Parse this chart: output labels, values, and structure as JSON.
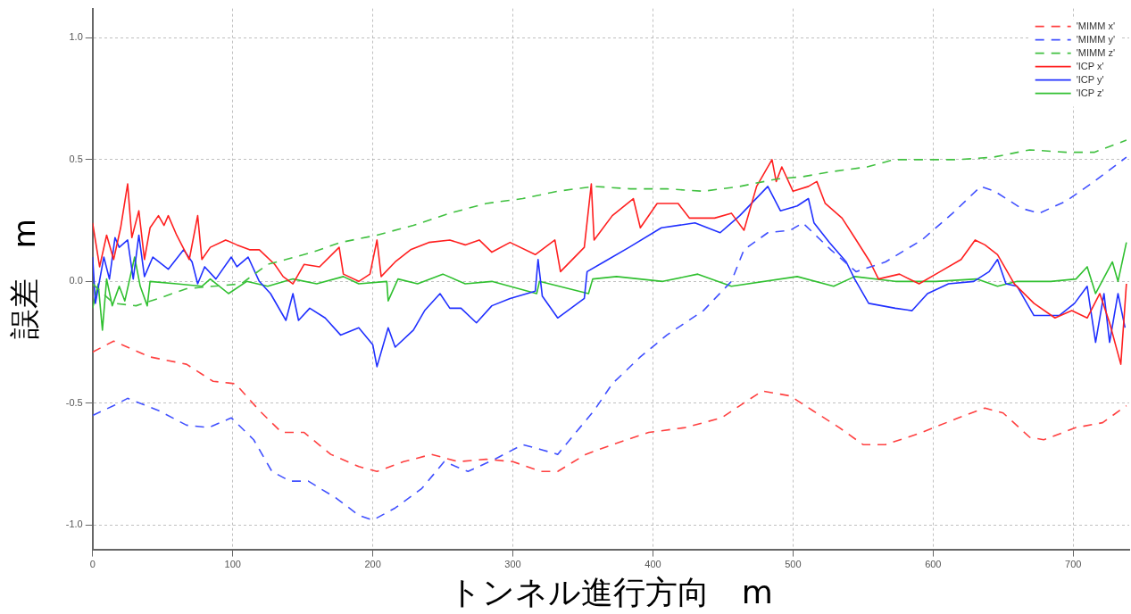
{
  "chart_data": {
    "type": "line",
    "xlabel": "トンネル進行方向　m",
    "ylabel": "誤差　m",
    "xlim": [
      0,
      740
    ],
    "xticks": [
      0,
      100,
      200,
      300,
      400,
      500,
      600,
      700
    ],
    "ylim": [
      -1.1,
      1.12
    ],
    "yticks": [
      {
        "value": -1,
        "label": "-1.0"
      },
      {
        "value": -0.5,
        "label": "-0.5"
      },
      {
        "value": 0,
        "label": "0.0"
      },
      {
        "value": 0.5,
        "label": "0.5"
      },
      {
        "value": 1,
        "label": "1.0"
      }
    ],
    "grid": true,
    "legend": "top right",
    "marker": "none",
    "series": [
      {
        "name": "'MIMM x'",
        "color": "#ff4040",
        "line_style": "dashed",
        "x": [
          0,
          15,
          41,
          67,
          86,
          102,
          119,
          135,
          151,
          170,
          190,
          203,
          222,
          242,
          261,
          281,
          300,
          320,
          332,
          352,
          371,
          397,
          423,
          449,
          462,
          478,
          498,
          514,
          533,
          550,
          566,
          592,
          618,
          637,
          650,
          669,
          679,
          702,
          721,
          738
        ],
        "values": [
          -0.29,
          -0.245,
          -0.31,
          -0.34,
          -0.41,
          -0.42,
          -0.53,
          -0.62,
          -0.62,
          -0.71,
          -0.76,
          -0.78,
          -0.74,
          -0.71,
          -0.74,
          -0.73,
          -0.74,
          -0.78,
          -0.78,
          -0.71,
          -0.67,
          -0.62,
          -0.6,
          -0.56,
          -0.51,
          -0.45,
          -0.47,
          -0.53,
          -0.6,
          -0.67,
          -0.67,
          -0.62,
          -0.56,
          -0.52,
          -0.54,
          -0.64,
          -0.65,
          -0.6,
          -0.58,
          -0.51
        ]
      },
      {
        "name": "'MIMM y'",
        "color": "#4050ff",
        "line_style": "dashed",
        "x": [
          0,
          15,
          25,
          47,
          67,
          83,
          99,
          115,
          128,
          141,
          154,
          174,
          190,
          200,
          216,
          235,
          251,
          268,
          287,
          307,
          320,
          332,
          345,
          358,
          371,
          391,
          410,
          436,
          456,
          465,
          482,
          498,
          507,
          527,
          545,
          566,
          592,
          614,
          634,
          644,
          663,
          676,
          695,
          715,
          738
        ],
        "values": [
          -0.55,
          -0.51,
          -0.48,
          -0.53,
          -0.59,
          -0.6,
          -0.56,
          -0.65,
          -0.78,
          -0.82,
          -0.82,
          -0.89,
          -0.96,
          -0.98,
          -0.93,
          -0.85,
          -0.74,
          -0.78,
          -0.73,
          -0.67,
          -0.69,
          -0.71,
          -0.62,
          -0.53,
          -0.42,
          -0.31,
          -0.22,
          -0.12,
          0.0,
          0.13,
          0.2,
          0.21,
          0.24,
          0.13,
          0.04,
          0.08,
          0.17,
          0.28,
          0.39,
          0.37,
          0.3,
          0.28,
          0.33,
          0.41,
          0.51
        ]
      },
      {
        "name": "'MIMM z'",
        "color": "#40c040",
        "line_style": "dashed",
        "x": [
          0,
          15,
          31,
          47,
          67,
          86,
          106,
          125,
          138,
          157,
          177,
          203,
          229,
          255,
          281,
          307,
          332,
          358,
          384,
          410,
          436,
          462,
          488,
          507,
          527,
          553,
          572,
          592,
          618,
          643,
          669,
          695,
          715,
          738
        ],
        "values": [
          -0.01,
          -0.09,
          -0.1,
          -0.07,
          -0.03,
          -0.02,
          -0.01,
          0.07,
          0.09,
          0.12,
          0.16,
          0.19,
          0.23,
          0.28,
          0.32,
          0.34,
          0.37,
          0.39,
          0.38,
          0.38,
          0.37,
          0.39,
          0.42,
          0.43,
          0.45,
          0.47,
          0.5,
          0.5,
          0.5,
          0.51,
          0.54,
          0.53,
          0.53,
          0.58
        ]
      },
      {
        "name": "'ICP x'",
        "color": "#ff2020",
        "line_style": "solid",
        "x": [
          0,
          5,
          10,
          15,
          20,
          25,
          28,
          33,
          37,
          41,
          47,
          51,
          54,
          60,
          69,
          75,
          78,
          84,
          95,
          103,
          112,
          119,
          130,
          136,
          143,
          151,
          162,
          176,
          179,
          190,
          198,
          203,
          206,
          216,
          227,
          240,
          255,
          266,
          276,
          285,
          298,
          316,
          330,
          334,
          351,
          356,
          358,
          371,
          386,
          391,
          403,
          418,
          426,
          444,
          456,
          465,
          474,
          485,
          488,
          492,
          500,
          511,
          517,
          523,
          535,
          544,
          555,
          561,
          576,
          590,
          605,
          620,
          630,
          637,
          646,
          658,
          672,
          687,
          699,
          710,
          719,
          726,
          734,
          738
        ],
        "values": [
          0.24,
          0.06,
          0.19,
          0.09,
          0.22,
          0.4,
          0.18,
          0.29,
          0.09,
          0.22,
          0.27,
          0.23,
          0.27,
          0.19,
          0.09,
          0.27,
          0.09,
          0.14,
          0.17,
          0.15,
          0.13,
          0.13,
          0.07,
          0.02,
          -0.01,
          0.07,
          0.06,
          0.14,
          0.03,
          0.0,
          0.03,
          0.17,
          0.02,
          0.08,
          0.13,
          0.16,
          0.17,
          0.15,
          0.17,
          0.12,
          0.16,
          0.11,
          0.17,
          0.04,
          0.14,
          0.4,
          0.17,
          0.27,
          0.34,
          0.22,
          0.32,
          0.32,
          0.26,
          0.26,
          0.28,
          0.21,
          0.39,
          0.5,
          0.41,
          0.47,
          0.37,
          0.39,
          0.41,
          0.32,
          0.26,
          0.18,
          0.08,
          0.01,
          0.03,
          -0.01,
          0.04,
          0.09,
          0.17,
          0.15,
          0.11,
          -0.01,
          -0.09,
          -0.15,
          -0.12,
          -0.15,
          -0.05,
          -0.17,
          -0.34,
          -0.01
        ]
      },
      {
        "name": "'ICP y'",
        "color": "#2030ff",
        "line_style": "solid",
        "x": [
          0,
          2,
          8,
          12,
          16,
          19,
          25,
          29,
          33,
          37,
          43,
          54,
          65,
          71,
          75,
          80,
          88,
          99,
          103,
          111,
          119,
          127,
          138,
          143,
          147,
          155,
          166,
          177,
          190,
          200,
          203,
          211,
          216,
          229,
          237,
          248,
          255,
          263,
          274,
          285,
          298,
          316,
          318,
          321,
          332,
          351,
          353,
          365,
          383,
          406,
          430,
          448,
          462,
          482,
          491,
          503,
          511,
          515,
          526,
          538,
          544,
          554,
          573,
          585,
          596,
          611,
          629,
          640,
          646,
          652,
          660,
          672,
          690,
          701,
          710,
          716,
          722,
          726,
          732,
          737
        ],
        "values": [
          0.1,
          -0.09,
          0.1,
          0.01,
          0.18,
          0.14,
          0.17,
          0.01,
          0.19,
          0.02,
          0.1,
          0.05,
          0.13,
          0.08,
          -0.01,
          0.06,
          0.01,
          0.1,
          0.06,
          0.1,
          0.0,
          -0.05,
          -0.16,
          -0.05,
          -0.16,
          -0.11,
          -0.15,
          -0.22,
          -0.19,
          -0.26,
          -0.35,
          -0.19,
          -0.27,
          -0.2,
          -0.12,
          -0.05,
          -0.11,
          -0.11,
          -0.17,
          -0.1,
          -0.07,
          -0.04,
          0.09,
          -0.06,
          -0.15,
          -0.07,
          0.04,
          0.08,
          0.14,
          0.22,
          0.24,
          0.2,
          0.27,
          0.39,
          0.29,
          0.31,
          0.34,
          0.24,
          0.16,
          0.08,
          0.01,
          -0.09,
          -0.11,
          -0.12,
          -0.05,
          -0.01,
          0.0,
          0.04,
          0.09,
          -0.01,
          -0.02,
          -0.14,
          -0.14,
          -0.09,
          -0.02,
          -0.25,
          -0.05,
          -0.25,
          -0.05,
          -0.19
        ]
      },
      {
        "name": "'ICP z'",
        "color": "#30c030",
        "line_style": "solid",
        "x": [
          0,
          4,
          7,
          10,
          14,
          19,
          23,
          30,
          34,
          39,
          41,
          60,
          78,
          84,
          97,
          110,
          125,
          143,
          160,
          179,
          190,
          210,
          211,
          218,
          232,
          250,
          266,
          285,
          317,
          319,
          354,
          357,
          374,
          407,
          432,
          456,
          503,
          529,
          544,
          573,
          602,
          631,
          646,
          660,
          684,
          702,
          710,
          716,
          728,
          732,
          738
        ],
        "values": [
          -0.11,
          -0.01,
          -0.2,
          0.01,
          -0.1,
          -0.02,
          -0.08,
          0.1,
          -0.02,
          -0.1,
          0.0,
          -0.01,
          -0.02,
          0.01,
          -0.05,
          0.0,
          -0.02,
          0.01,
          -0.01,
          0.02,
          -0.01,
          0.0,
          -0.08,
          0.01,
          -0.01,
          0.03,
          -0.01,
          0.0,
          -0.05,
          0.0,
          -0.05,
          0.01,
          0.02,
          0.0,
          0.03,
          -0.02,
          0.02,
          -0.02,
          0.02,
          0.0,
          0.0,
          0.01,
          -0.02,
          0.0,
          0.0,
          0.01,
          0.06,
          -0.05,
          0.08,
          0.0,
          0.16
        ]
      }
    ]
  }
}
